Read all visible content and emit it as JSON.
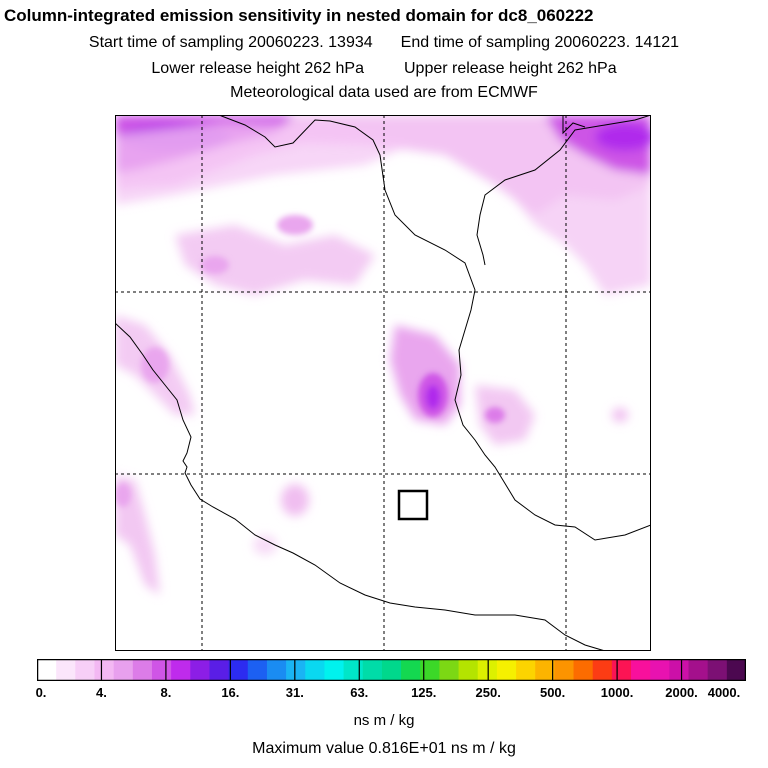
{
  "header": {
    "title": "Column-integrated emission sensitivity in nested domain for dc8_060222",
    "start_label": "Start time of sampling 20060223. 13934",
    "end_label": "End time of sampling 20060223. 14121",
    "lower_label": "Lower release height  262 hPa",
    "upper_label": "Upper release height  262 hPa",
    "met_label": "Meteorological data used are from ECMWF"
  },
  "colorbar": {
    "colors": [
      "#ffffff",
      "#fbe6fb",
      "#f7cff7",
      "#f3b8f3",
      "#e8a0ee",
      "#dc7ce8",
      "#cf55e6",
      "#bf2bec",
      "#8c1ee6",
      "#5a1ee6",
      "#2c2cf0",
      "#1c60f2",
      "#1a8cf2",
      "#1ab4f4",
      "#0ad8f0",
      "#00f2ee",
      "#00e6c8",
      "#00dca8",
      "#00d88c",
      "#14d850",
      "#3cd828",
      "#7cd814",
      "#b4e400",
      "#dcf000",
      "#f6f000",
      "#fcd400",
      "#fcb400",
      "#fc9400",
      "#fc6c00",
      "#fc3c14",
      "#fc1454",
      "#f8109c",
      "#e812b0",
      "#cc10a8",
      "#a4108c",
      "#7c1074",
      "#4c0850"
    ],
    "tick_labels": [
      "0.",
      "4.",
      "8.",
      "16.",
      "31.",
      "63.",
      "125.",
      "250.",
      "500.",
      "1000.",
      "2000.",
      "4000."
    ],
    "units": "ns m / kg"
  },
  "footer": {
    "max_value_label": "Maximum value  0.816E+01 ns m / kg"
  }
}
